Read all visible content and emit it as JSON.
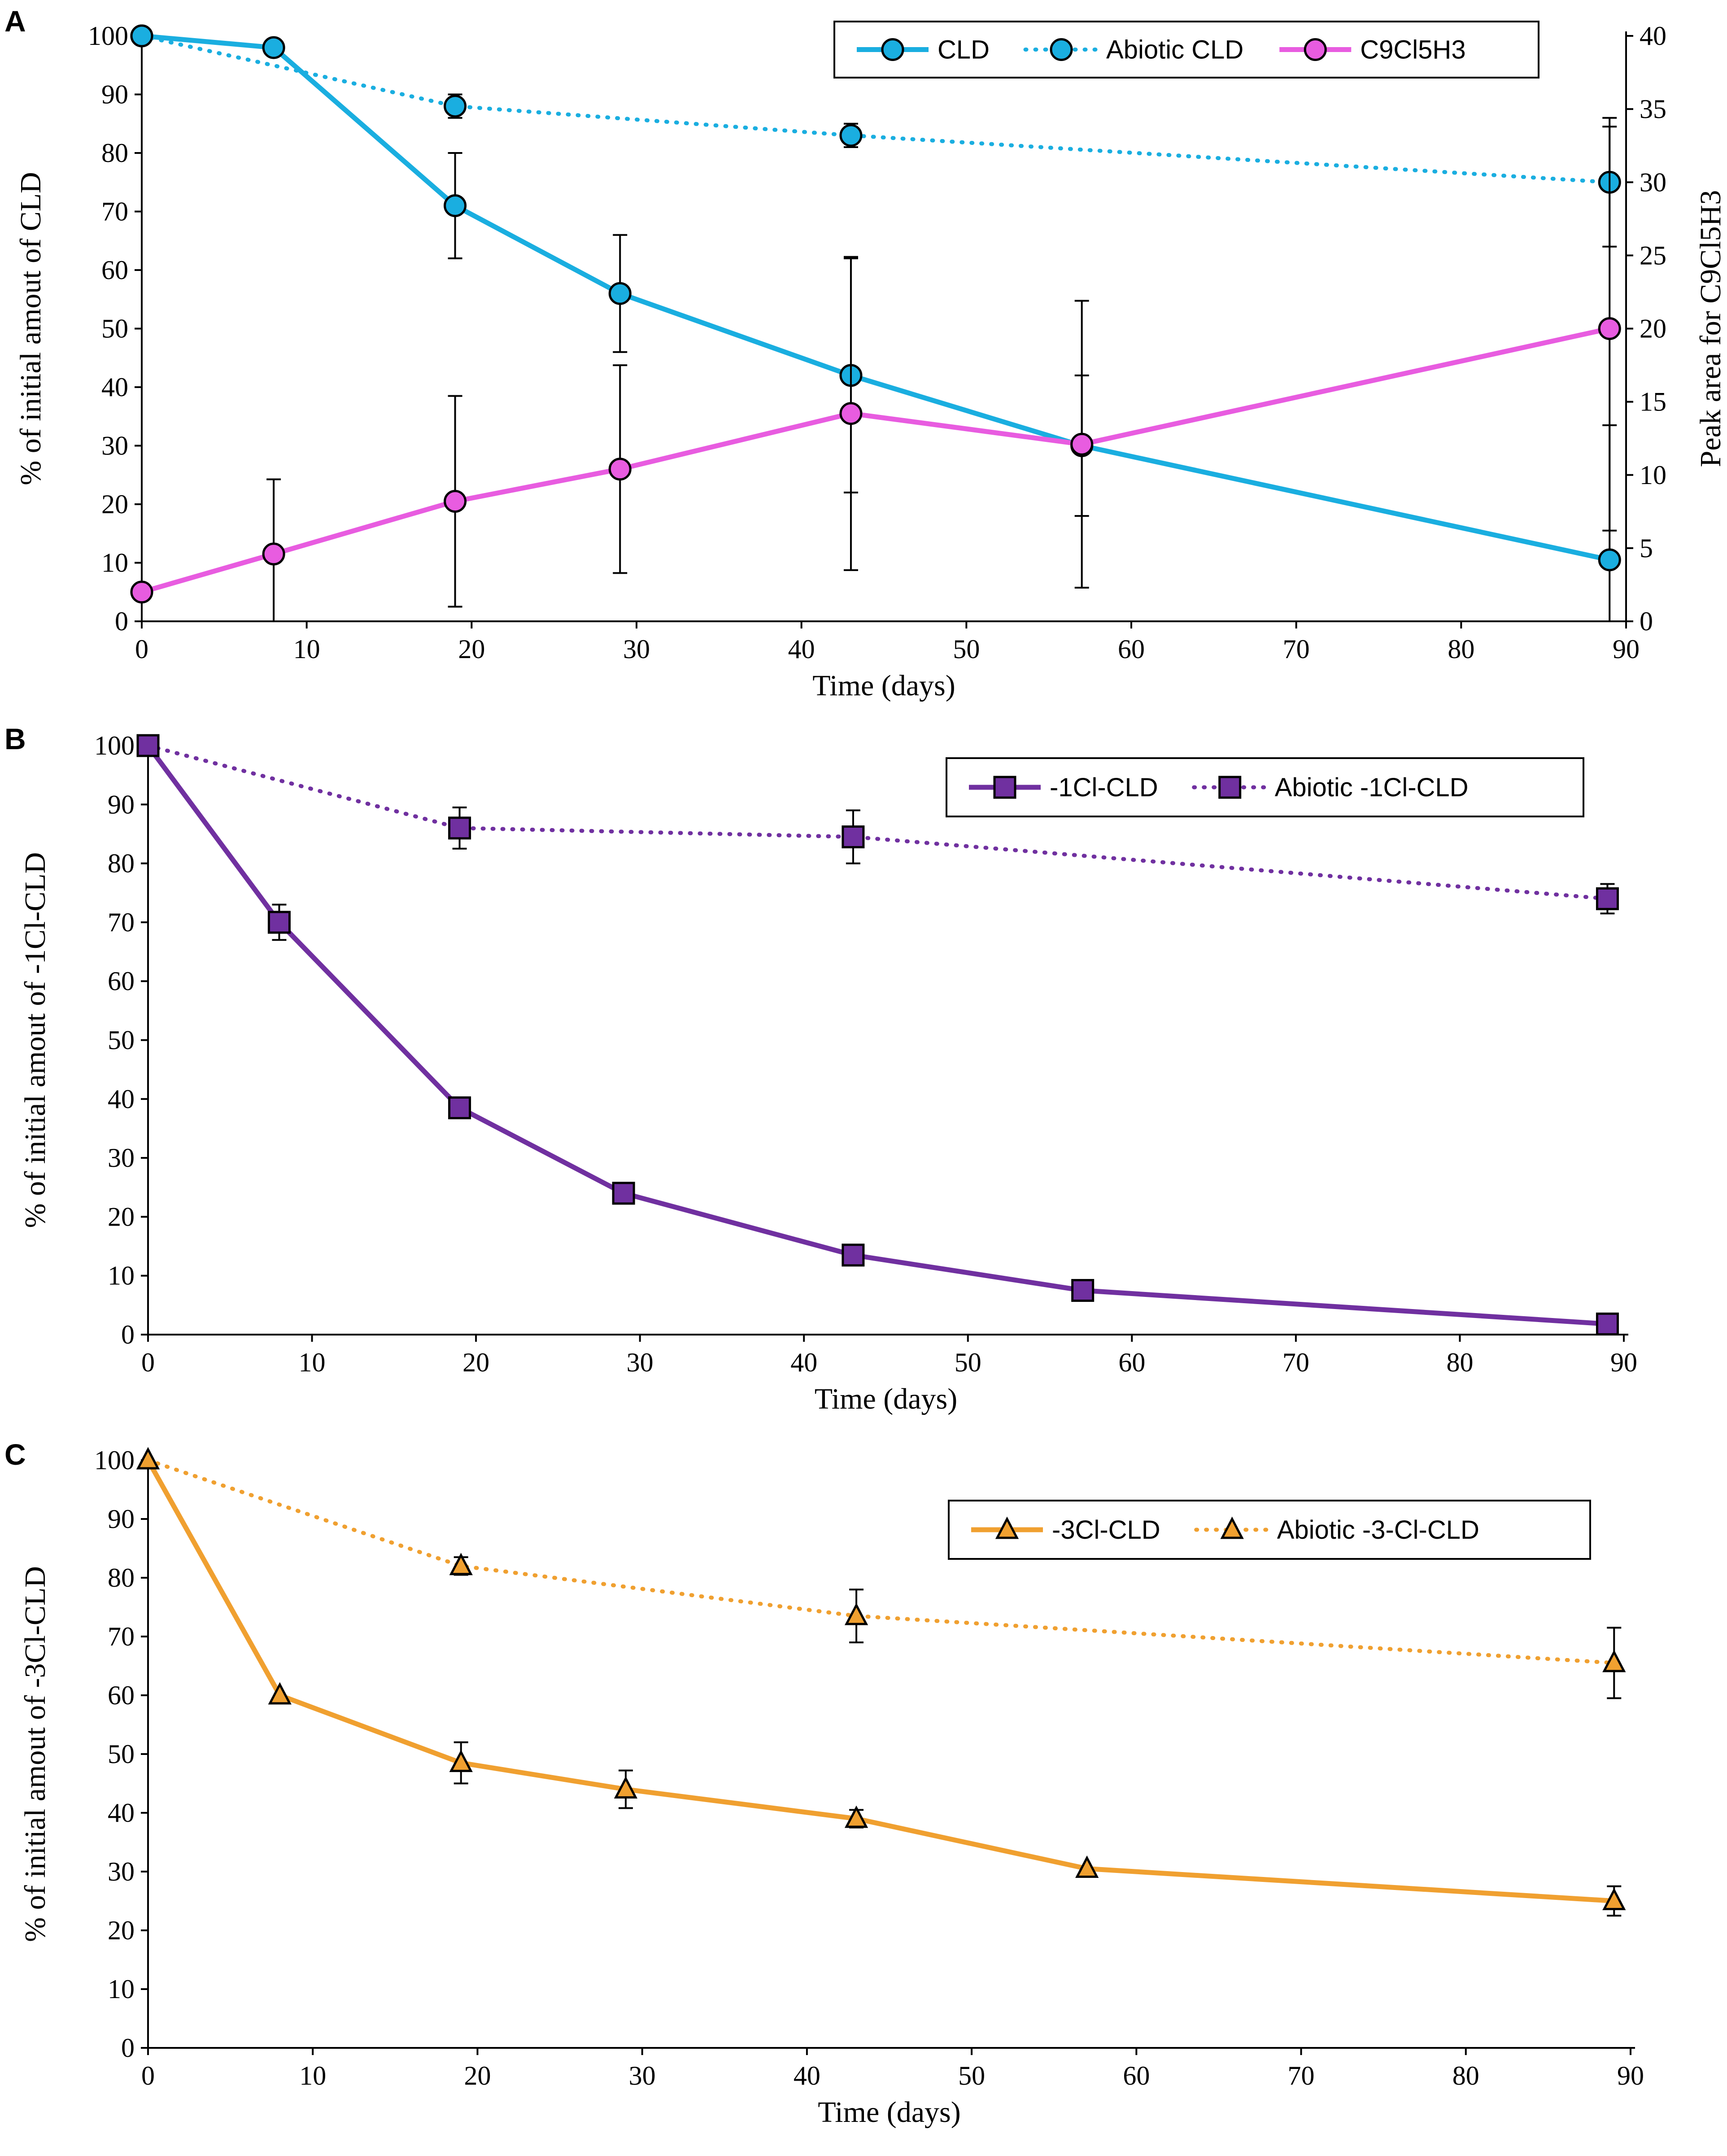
{
  "chart_data": [
    {
      "type": "line",
      "panel_label": "A",
      "title": "",
      "xlabel": "Time (days)",
      "ylabel": "% of initial amout of CLD",
      "ylabel_right": "Peak area for C9Cl5H3",
      "xlim": [
        0,
        90
      ],
      "ylim": [
        0,
        100
      ],
      "ylim_right": [
        0,
        40
      ],
      "xticks": [
        "0",
        "10",
        "20",
        "30",
        "40",
        "50",
        "60",
        "70",
        "80",
        "90"
      ],
      "yticks": [
        "0",
        "10",
        "20",
        "30",
        "40",
        "50",
        "60",
        "70",
        "80",
        "90",
        "100"
      ],
      "yticks_right": [
        "0",
        "5",
        "10",
        "15",
        "20",
        "25",
        "30",
        "35",
        "40"
      ],
      "legend_position": "top-right",
      "series": [
        {
          "name": "CLD",
          "color": "#1aaee0",
          "style": "solid",
          "marker": "circle",
          "axis": "left",
          "x": [
            0,
            8,
            19,
            29,
            43,
            57,
            89
          ],
          "y": [
            100,
            98,
            71,
            56,
            42,
            30,
            10.5
          ],
          "err": [
            0,
            1,
            9,
            10,
            20,
            12,
            23
          ]
        },
        {
          "name": "Abiotic CLD",
          "color": "#1aaee0",
          "style": "dotted",
          "marker": "circle",
          "axis": "left",
          "x": [
            0,
            19,
            43,
            89
          ],
          "y": [
            100,
            88,
            83,
            75
          ],
          "err": [
            0,
            2,
            2,
            11
          ]
        },
        {
          "name": "C9Cl5H3",
          "color": "#e85ce0",
          "style": "solid",
          "marker": "circle",
          "axis": "right",
          "x": [
            0,
            8,
            19,
            29,
            43,
            57,
            89
          ],
          "y": [
            2,
            4.6,
            8.2,
            10.4,
            14.2,
            12.1,
            20
          ],
          "err": [
            0,
            5.1,
            7.2,
            7.1,
            10.7,
            9.8,
            13.8
          ]
        }
      ]
    },
    {
      "type": "line",
      "panel_label": "B",
      "title": "",
      "xlabel": "Time (days)",
      "ylabel": "% of initial amout of -1Cl-CLD",
      "xlim": [
        0,
        90
      ],
      "ylim": [
        0,
        100
      ],
      "xticks": [
        "0",
        "10",
        "20",
        "30",
        "40",
        "50",
        "60",
        "70",
        "80",
        "90"
      ],
      "yticks": [
        "0",
        "10",
        "20",
        "30",
        "40",
        "50",
        "60",
        "70",
        "80",
        "90",
        "100"
      ],
      "legend_position": "top-right",
      "series": [
        {
          "name": "-1Cl-CLD",
          "color": "#7030a0",
          "style": "solid",
          "marker": "square",
          "x": [
            0,
            8,
            19,
            29,
            43,
            57,
            89
          ],
          "y": [
            100,
            70,
            38.5,
            24,
            13.5,
            7.5,
            1.8
          ],
          "err": [
            0,
            3,
            0,
            0,
            0,
            0,
            0
          ]
        },
        {
          "name": "Abiotic -1Cl-CLD",
          "color": "#7030a0",
          "style": "dotted",
          "marker": "square",
          "x": [
            0,
            19,
            43,
            89
          ],
          "y": [
            100,
            86,
            84.5,
            74
          ],
          "err": [
            0,
            3.5,
            4.5,
            2.5
          ]
        }
      ]
    },
    {
      "type": "line",
      "panel_label": "C",
      "title": "",
      "xlabel": "Time (days)",
      "ylabel": "% of initial amout of  -3Cl-CLD",
      "xlim": [
        0,
        90
      ],
      "ylim": [
        0,
        100
      ],
      "xticks": [
        "0",
        "10",
        "20",
        "30",
        "40",
        "50",
        "60",
        "70",
        "80",
        "90"
      ],
      "yticks": [
        "0",
        "10",
        "20",
        "30",
        "40",
        "50",
        "60",
        "70",
        "80",
        "90",
        "100"
      ],
      "legend_position": "top-right",
      "series": [
        {
          "name": "-3Cl-CLD",
          "color": "#f0a030",
          "style": "solid",
          "marker": "triangle",
          "x": [
            0,
            8,
            19,
            29,
            43,
            57,
            89
          ],
          "y": [
            100,
            60,
            48.5,
            44,
            39,
            30.5,
            25
          ],
          "err": [
            0,
            0,
            3.5,
            3.2,
            1.5,
            0,
            2.5
          ]
        },
        {
          "name": "Abiotic -3-Cl-CLD",
          "color": "#f0a030",
          "style": "dotted",
          "marker": "triangle",
          "x": [
            0,
            19,
            43,
            89
          ],
          "y": [
            100,
            82,
            73.5,
            65.5
          ],
          "err": [
            0,
            1.5,
            4.5,
            6
          ]
        }
      ]
    }
  ]
}
